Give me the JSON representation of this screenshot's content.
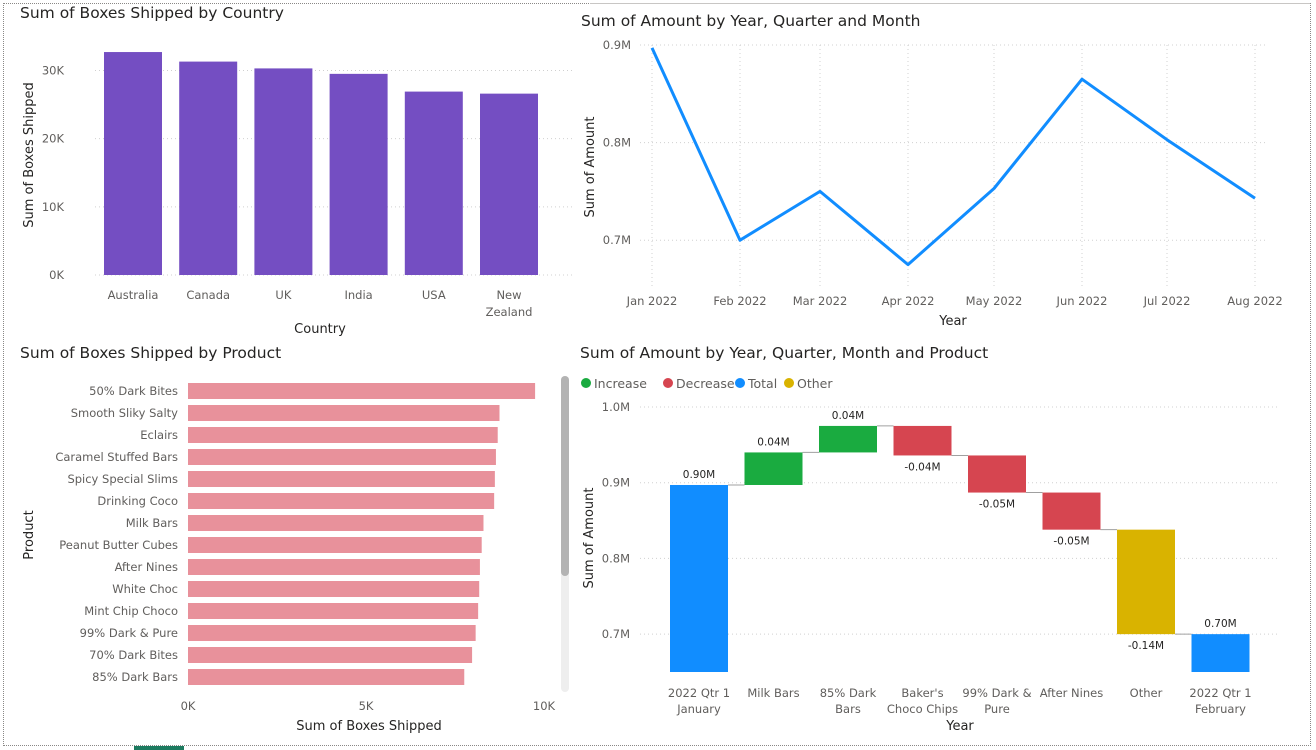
{
  "chart_data": [
    {
      "id": "country",
      "type": "bar",
      "title": "Sum of Boxes Shipped by Country",
      "xlabel": "Country",
      "ylabel": "Sum of Boxes Shipped",
      "categories": [
        "Australia",
        "Canada",
        "UK",
        "India",
        "USA",
        "New Zealand"
      ],
      "values": [
        32700,
        31300,
        30300,
        29500,
        26900,
        26600
      ],
      "ylim": [
        0,
        33000
      ],
      "yticks": [
        0,
        10000,
        20000,
        30000
      ],
      "ytick_labels": [
        "0K",
        "10K",
        "20K",
        "30K"
      ],
      "color": "#744ec2",
      "grid": true
    },
    {
      "id": "amount_line",
      "type": "line",
      "title": "Sum of Amount by Year, Quarter and Month",
      "xlabel": "Year",
      "ylabel": "Sum of Amount",
      "x": [
        "Jan 2022",
        "Feb 2022",
        "Mar 2022",
        "Apr 2022",
        "May 2022",
        "Jun 2022",
        "Jul 2022",
        "Aug 2022"
      ],
      "values": [
        0.897,
        0.7,
        0.75,
        0.675,
        0.753,
        0.865,
        0.803,
        0.743
      ],
      "ylim": [
        0.65,
        0.9
      ],
      "yticks": [
        0.7,
        0.8,
        0.9
      ],
      "ytick_labels": [
        "0.7M",
        "0.8M",
        "0.9M"
      ],
      "color": "#118dff",
      "grid": true
    },
    {
      "id": "product",
      "type": "bar",
      "orientation": "horizontal",
      "title": "Sum of Boxes Shipped by Product",
      "xlabel": "Sum of Boxes Shipped",
      "ylabel": "Product",
      "categories": [
        "50% Dark Bites",
        "Smooth Sliky Salty",
        "Eclairs",
        "Caramel Stuffed Bars",
        "Spicy Special Slims",
        "Drinking Coco",
        "Milk Bars",
        "Peanut Butter Cubes",
        "After Nines",
        "White Choc",
        "Mint Chip Choco",
        "99% Dark & Pure",
        "70% Dark Bites",
        "85% Dark Bars"
      ],
      "values": [
        9750,
        8750,
        8700,
        8650,
        8620,
        8600,
        8300,
        8250,
        8200,
        8180,
        8150,
        8080,
        7980,
        7760
      ],
      "xlim": [
        0,
        10000
      ],
      "xticks": [
        0,
        5000,
        10000
      ],
      "xtick_labels": [
        "0K",
        "5K",
        "10K"
      ],
      "color": "#e8919b"
    },
    {
      "id": "waterfall",
      "type": "waterfall",
      "title": "Sum of Amount by Year, Quarter, Month and Product",
      "xlabel": "Year",
      "ylabel": "Sum of Amount",
      "legend": [
        {
          "label": "Increase",
          "color": "#1aab40"
        },
        {
          "label": "Decrease",
          "color": "#d64550"
        },
        {
          "label": "Total",
          "color": "#118dff"
        },
        {
          "label": "Other",
          "color": "#d9b300"
        }
      ],
      "legend_position": "top-left",
      "categories": [
        [
          "2022 Qtr 1",
          "January"
        ],
        [
          "Milk Bars"
        ],
        [
          "85% Dark",
          "Bars"
        ],
        [
          "Baker's",
          "Choco Chips"
        ],
        [
          "99% Dark &",
          "Pure"
        ],
        [
          "After Nines"
        ],
        [
          "Other"
        ],
        [
          "2022 Qtr 1",
          "February"
        ]
      ],
      "steps": [
        {
          "kind": "Total",
          "start": 0,
          "end": 0.897,
          "label": "0.90M"
        },
        {
          "kind": "Increase",
          "start": 0.897,
          "end": 0.94,
          "label": "0.04M"
        },
        {
          "kind": "Increase",
          "start": 0.94,
          "end": 0.975,
          "label": "0.04M"
        },
        {
          "kind": "Decrease",
          "start": 0.975,
          "end": 0.936,
          "label": "-0.04M"
        },
        {
          "kind": "Decrease",
          "start": 0.936,
          "end": 0.887,
          "label": "-0.05M"
        },
        {
          "kind": "Decrease",
          "start": 0.887,
          "end": 0.838,
          "label": "-0.05M"
        },
        {
          "kind": "Other",
          "start": 0.838,
          "end": 0.7,
          "label": "-0.14M"
        },
        {
          "kind": "Total",
          "start": 0,
          "end": 0.7,
          "label": "0.70M"
        }
      ],
      "ylim": [
        0.65,
        1.0
      ],
      "yticks": [
        0.7,
        0.8,
        0.9,
        1.0
      ],
      "ytick_labels": [
        "0.7M",
        "0.8M",
        "0.9M",
        "1.0M"
      ],
      "grid": true
    }
  ]
}
